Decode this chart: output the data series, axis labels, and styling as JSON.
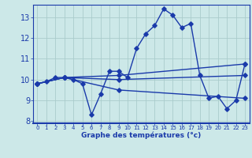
{
  "xlabel": "Graphe des températures (°c)",
  "bg_color": "#cce8e8",
  "line_color": "#1a3aaa",
  "grid_color": "#aacccc",
  "axis_bg": "#cce8e8",
  "ylim": [
    7.9,
    13.6
  ],
  "xlim": [
    -0.5,
    23.5
  ],
  "yticks": [
    8,
    9,
    10,
    11,
    12,
    13
  ],
  "xticks": [
    0,
    1,
    2,
    3,
    4,
    5,
    6,
    7,
    8,
    9,
    10,
    11,
    12,
    13,
    14,
    15,
    16,
    17,
    18,
    19,
    20,
    21,
    22,
    23
  ],
  "line1_x": [
    0,
    1,
    2,
    3,
    4,
    5,
    6,
    7,
    8,
    9,
    10,
    11,
    12,
    13,
    14,
    15,
    16,
    17,
    18,
    19,
    20,
    21,
    22,
    23
  ],
  "line1_y": [
    9.8,
    9.9,
    10.1,
    10.1,
    10.0,
    9.8,
    8.3,
    9.3,
    10.4,
    10.4,
    10.1,
    11.5,
    12.2,
    12.6,
    13.4,
    13.1,
    12.5,
    12.7,
    10.2,
    9.1,
    9.2,
    8.6,
    9.0,
    10.75
  ],
  "line2_x": [
    0,
    3,
    9,
    23
  ],
  "line2_y": [
    9.8,
    10.1,
    10.2,
    10.75
  ],
  "line3_x": [
    0,
    3,
    9,
    23
  ],
  "line3_y": [
    9.8,
    10.1,
    9.5,
    9.1
  ],
  "line4_x": [
    0,
    3,
    9,
    23
  ],
  "line4_y": [
    9.8,
    10.1,
    10.0,
    10.2
  ]
}
